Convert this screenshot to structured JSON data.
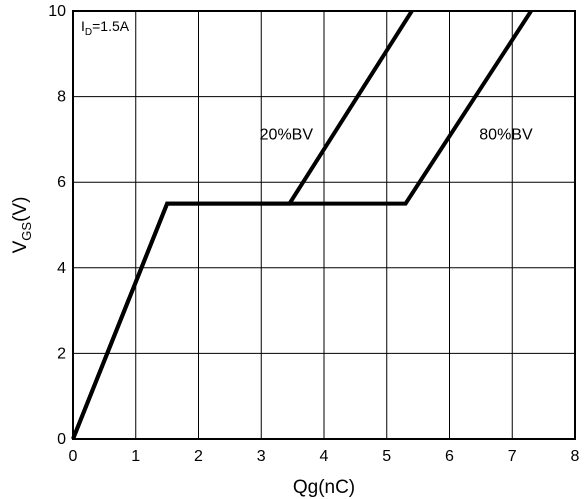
{
  "chart_data": {
    "type": "line",
    "xlabel": "Qg(nC)",
    "ylabel": {
      "main": "V",
      "sub": "GS",
      "suffix": "(V)"
    },
    "xlim": [
      0,
      8
    ],
    "ylim": [
      0,
      10
    ],
    "xticks": [
      0,
      1,
      2,
      3,
      4,
      5,
      6,
      7,
      8
    ],
    "yticks": [
      0,
      2,
      4,
      6,
      8,
      10
    ],
    "grid": true,
    "condition": {
      "main": "I",
      "sub": "D",
      "suffix": "=1.5A"
    },
    "series": [
      {
        "name": "20%BV",
        "points": [
          [
            0,
            0
          ],
          [
            1.5,
            5.5
          ],
          [
            3.45,
            5.5
          ],
          [
            5.4,
            10
          ]
        ]
      },
      {
        "name": "80%BV",
        "points": [
          [
            0,
            0
          ],
          [
            1.5,
            5.5
          ],
          [
            5.3,
            5.5
          ],
          [
            7.3,
            10
          ]
        ]
      }
    ],
    "annotations": [
      {
        "text": "20%BV",
        "x": 3.4,
        "y": 7.0
      },
      {
        "text": "80%BV",
        "x": 6.9,
        "y": 7.0
      }
    ],
    "line_color": "#000000"
  }
}
